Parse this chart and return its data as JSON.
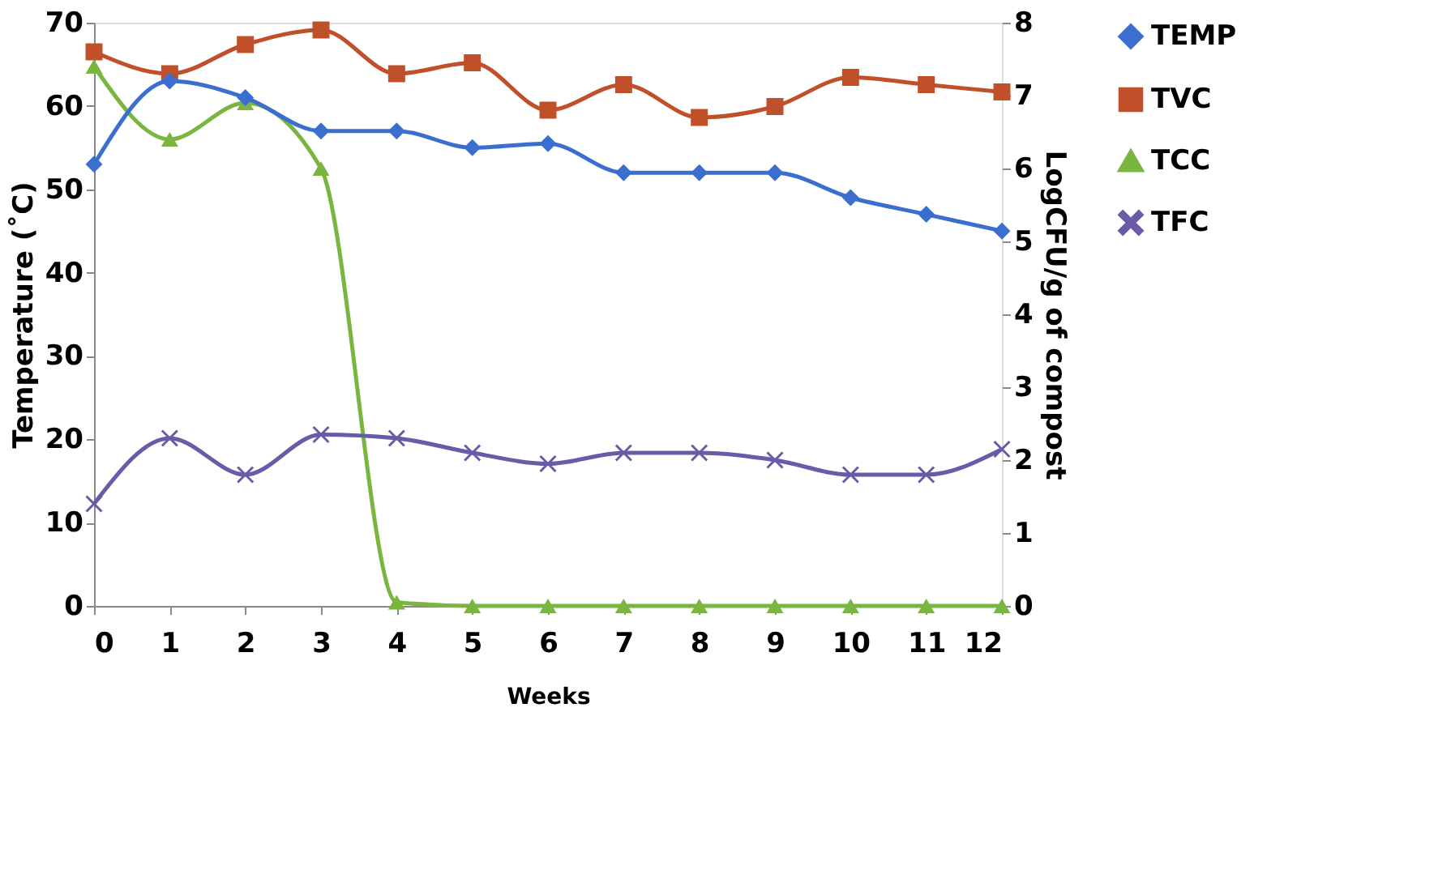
{
  "chart_data": {
    "type": "line",
    "xlabel": "Weeks",
    "ylabel": "Temperature (˚C)",
    "y2label": "LogCFU/g of compost",
    "x": [
      0,
      1,
      2,
      3,
      4,
      5,
      6,
      7,
      8,
      9,
      10,
      11,
      12
    ],
    "xlim": [
      0,
      12
    ],
    "xticks": [
      0,
      1,
      2,
      3,
      4,
      5,
      6,
      7,
      8,
      9,
      10,
      11,
      12
    ],
    "ylim": [
      0,
      70
    ],
    "yticks": [
      0,
      10,
      20,
      30,
      40,
      50,
      60,
      70
    ],
    "y2lim": [
      0,
      8
    ],
    "y2ticks": [
      0,
      1,
      2,
      3,
      4,
      5,
      6,
      7,
      8
    ],
    "grid": false,
    "legend": "top right",
    "line_style": "solid",
    "series": [
      {
        "name": "TEMP",
        "color": "#3a6fd0",
        "marker": "diamond",
        "values": [
          53,
          63,
          61,
          57,
          57,
          55,
          55.5,
          52,
          52,
          52,
          49,
          47,
          45
        ]
      },
      {
        "name": "TVC",
        "color": "#c0502a",
        "marker": "square",
        "axis": "y2",
        "values": [
          7.6,
          7.3,
          7.7,
          7.9,
          7.3,
          7.45,
          6.8,
          7.15,
          6.7,
          6.85,
          7.25,
          7.15,
          7.05
        ]
      },
      {
        "name": "TCC",
        "color": "#7ab540",
        "marker": "triangle",
        "axis": "y2",
        "values": [
          7.4,
          6.4,
          6.9,
          6.0,
          0.05,
          0,
          0,
          0,
          0,
          0,
          0,
          0,
          0
        ]
      },
      {
        "name": "TFC",
        "color": "#6a5aa8",
        "marker": "cross",
        "axis": "y2",
        "values": [
          1.4,
          2.3,
          1.8,
          2.35,
          2.3,
          2.1,
          1.95,
          2.1,
          2.1,
          2.0,
          1.8,
          1.8,
          2.15
        ]
      }
    ]
  }
}
